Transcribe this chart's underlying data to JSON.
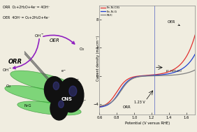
{
  "xlim": [
    0.6,
    1.7
  ],
  "ylim": [
    -5.5,
    10
  ],
  "xticks": [
    0.6,
    0.8,
    1.0,
    1.2,
    1.4,
    1.6
  ],
  "yticks": [
    -4,
    0,
    4,
    8
  ],
  "xlabel": "Potential (V versus RHE)",
  "ylabel": "Current density (mA cm⁻²)",
  "vline_x": 1.23,
  "vline_label": "1.23 V",
  "orr_label": "ORR",
  "oer_label": "OER",
  "legend_labels": [
    "Fe-N-ClG",
    "Fe-N-G",
    "Pt/C"
  ],
  "legend_colors": [
    "#e03030",
    "#2040d0",
    "#808080"
  ],
  "bg_color": "#f0ede0",
  "chart_bg": "#f0ede0",
  "left_bg": "#ffffff",
  "text_color": "#222222",
  "eqn1": "ORR  O₂+2H₂O+4e⁻= 4OH⁻",
  "eqn2": "OER  4OH⁻= O₂+2H₂O+4e⁻"
}
